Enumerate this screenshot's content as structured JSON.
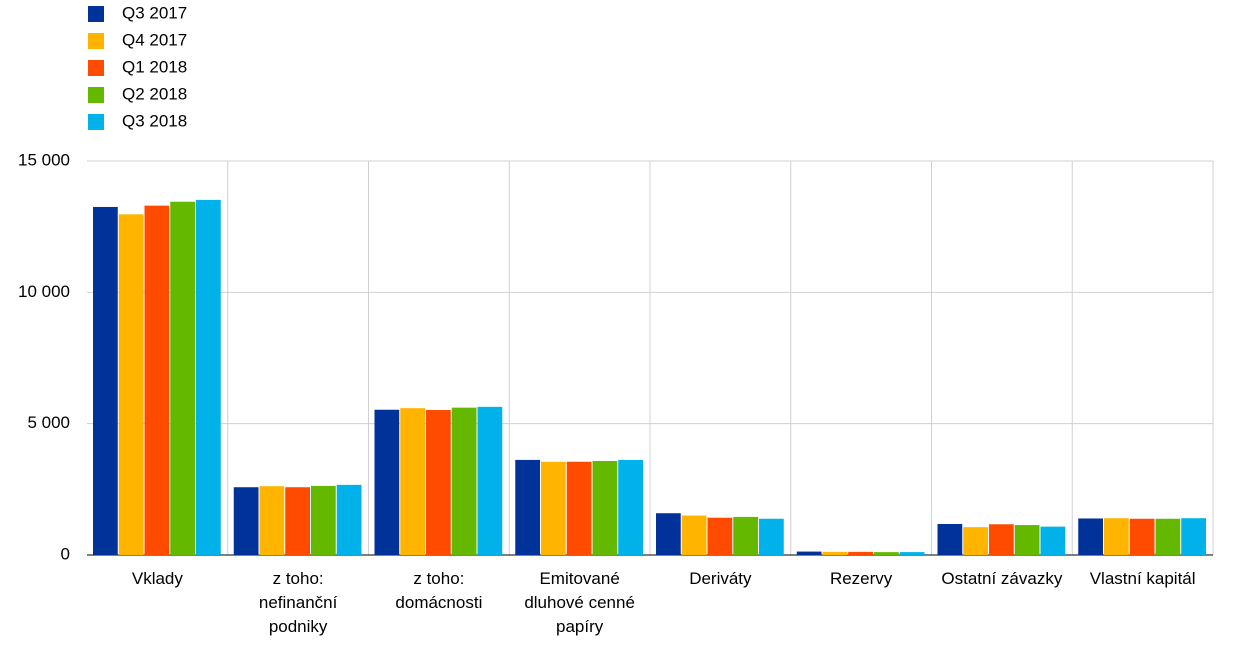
{
  "chart_data": {
    "type": "bar",
    "categories": [
      "Vklady",
      "z toho: nefinanční podniky",
      "z toho: domácnosti",
      "Emitované dluhové cenné papíry",
      "Deriváty",
      "Rezervy",
      "Ostatní závazky",
      "Vlastní kapitál"
    ],
    "series": [
      {
        "name": "Q3 2017",
        "color": "#003299",
        "values": [
          13250,
          2580,
          5530,
          3620,
          1590,
          130,
          1180,
          1390
        ]
      },
      {
        "name": "Q4 2017",
        "color": "#ffb400",
        "values": [
          12970,
          2620,
          5590,
          3550,
          1500,
          120,
          1060,
          1400
        ]
      },
      {
        "name": "Q1 2018",
        "color": "#ff4b00",
        "values": [
          13300,
          2580,
          5520,
          3550,
          1420,
          120,
          1170,
          1380
        ]
      },
      {
        "name": "Q2 2018",
        "color": "#65b800",
        "values": [
          13450,
          2630,
          5610,
          3580,
          1450,
          110,
          1140,
          1380
        ]
      },
      {
        "name": "Q3 2018",
        "color": "#00b1ea",
        "values": [
          13520,
          2670,
          5640,
          3620,
          1380,
          110,
          1080,
          1400
        ]
      }
    ],
    "ylim": [
      0,
      15000
    ],
    "yticks": [
      0,
      {
        "value": 5000,
        "label": "5 000"
      },
      {
        "value": 10000,
        "label": "10 000"
      },
      {
        "value": 15000,
        "label": "15 000"
      }
    ],
    "grid": true,
    "legend": "top-left"
  }
}
